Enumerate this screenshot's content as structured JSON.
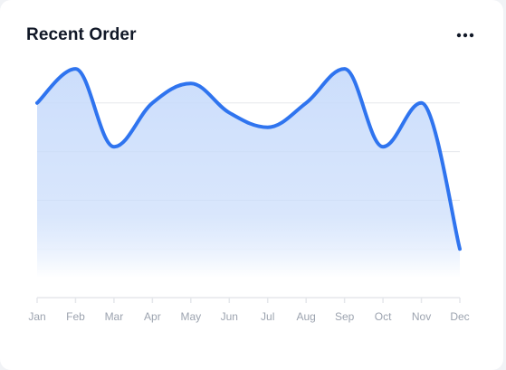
{
  "card": {
    "title": "Recent Order",
    "menu_icon": "more-horizontal-icon"
  },
  "colors": {
    "line": "#2f74ef",
    "area_top": "#c9dcfb",
    "area_bottom": "#ffffff",
    "grid": "#e5e7eb",
    "tick_text": "#9ca3af",
    "title": "#111827"
  },
  "chart_data": {
    "type": "area",
    "title": "Recent Order",
    "xlabel": "",
    "ylabel": "",
    "categories": [
      "Jan",
      "Feb",
      "Mar",
      "Apr",
      "May",
      "Jun",
      "Jul",
      "Aug",
      "Sep",
      "Oct",
      "Nov",
      "Dec"
    ],
    "series": [
      {
        "values": [
          400,
          470,
          310,
          400,
          440,
          380,
          350,
          400,
          470,
          310,
          400,
          100
        ]
      }
    ],
    "ylim": [
      0,
      500
    ],
    "y_gridlines": [
      100,
      200,
      300,
      400,
      500
    ],
    "curve": "smooth",
    "grid": true,
    "show_y_tick_labels": false,
    "legend": "none"
  }
}
